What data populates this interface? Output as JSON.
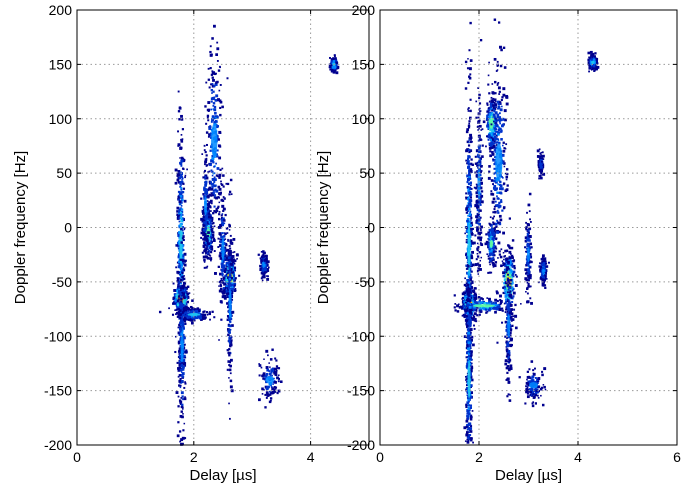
{
  "figure": {
    "panels": [
      "left",
      "right"
    ]
  },
  "colors": {
    "background": "#ffffff",
    "axes": "#000000",
    "grid": "#9a9a9a",
    "colormap": [
      "#00008f",
      "#0033cc",
      "#0088ff",
      "#22ccee",
      "#66ff99",
      "#ddff33",
      "#ffcc00",
      "#ff5500"
    ]
  },
  "chart_data": [
    {
      "type": "heatmap",
      "title": "",
      "xlabel": "Delay [µs]",
      "ylabel": "Doppler frequency [Hz]",
      "xlim": [
        0,
        5
      ],
      "ylim": [
        -200,
        200
      ],
      "xticks": [
        0,
        2,
        4
      ],
      "yticks": [
        -200,
        -150,
        -100,
        -50,
        0,
        50,
        100,
        150,
        200
      ],
      "grid": true,
      "blobs": [
        {
          "x": 1.78,
          "y": -65,
          "intensity": 1.0,
          "spread_x": 0.06,
          "spread_y": 6
        },
        {
          "x": 1.78,
          "y": -15,
          "intensity": 0.45,
          "spread_x": 0.03,
          "spread_y": 55
        },
        {
          "x": 1.8,
          "y": -110,
          "intensity": 0.35,
          "spread_x": 0.03,
          "spread_y": 40
        },
        {
          "x": 2.62,
          "y": -45,
          "intensity": 0.8,
          "spread_x": 0.05,
          "spread_y": 10
        },
        {
          "x": 2.62,
          "y": -70,
          "intensity": 0.3,
          "spread_x": 0.02,
          "spread_y": 40
        },
        {
          "x": 2.25,
          "y": -5,
          "intensity": 0.55,
          "spread_x": 0.04,
          "spread_y": 12
        },
        {
          "x": 2.2,
          "y": 20,
          "intensity": 0.3,
          "spread_x": 0.03,
          "spread_y": 25
        },
        {
          "x": 2.35,
          "y": 80,
          "intensity": 0.35,
          "spread_x": 0.06,
          "spread_y": 45
        },
        {
          "x": 2.5,
          "y": -20,
          "intensity": 0.3,
          "spread_x": 0.03,
          "spread_y": 30
        },
        {
          "x": 3.2,
          "y": -35,
          "intensity": 0.35,
          "spread_x": 0.03,
          "spread_y": 5
        },
        {
          "x": 3.3,
          "y": -140,
          "intensity": 0.3,
          "spread_x": 0.08,
          "spread_y": 10
        },
        {
          "x": 4.4,
          "y": 150,
          "intensity": 0.5,
          "spread_x": 0.03,
          "spread_y": 3
        },
        {
          "x": 2.0,
          "y": -80,
          "intensity": 0.4,
          "spread_x": 0.12,
          "spread_y": 3
        }
      ]
    },
    {
      "type": "heatmap",
      "title": "",
      "xlabel": "Delay [µs]",
      "ylabel": "Doppler frequency [Hz]",
      "xlim": [
        0,
        6
      ],
      "ylim": [
        -200,
        200
      ],
      "xticks": [
        0,
        2,
        4,
        6
      ],
      "yticks": [
        -200,
        -150,
        -100,
        -50,
        0,
        50,
        100,
        150,
        200
      ],
      "grid": true,
      "blobs": [
        {
          "x": 1.8,
          "y": -70,
          "intensity": 1.0,
          "spread_x": 0.06,
          "spread_y": 8
        },
        {
          "x": 1.8,
          "y": -20,
          "intensity": 0.45,
          "spread_x": 0.03,
          "spread_y": 70
        },
        {
          "x": 1.8,
          "y": -140,
          "intensity": 0.4,
          "spread_x": 0.03,
          "spread_y": 50
        },
        {
          "x": 2.1,
          "y": -72,
          "intensity": 0.55,
          "spread_x": 0.25,
          "spread_y": 3
        },
        {
          "x": 2.6,
          "y": -50,
          "intensity": 0.85,
          "spread_x": 0.06,
          "spread_y": 14
        },
        {
          "x": 2.6,
          "y": -90,
          "intensity": 0.3,
          "spread_x": 0.03,
          "spread_y": 30
        },
        {
          "x": 2.25,
          "y": 95,
          "intensity": 0.65,
          "spread_x": 0.05,
          "spread_y": 12
        },
        {
          "x": 2.4,
          "y": 60,
          "intensity": 0.35,
          "spread_x": 0.08,
          "spread_y": 50
        },
        {
          "x": 2.25,
          "y": -15,
          "intensity": 0.55,
          "spread_x": 0.04,
          "spread_y": 10
        },
        {
          "x": 2.0,
          "y": 40,
          "intensity": 0.3,
          "spread_x": 0.03,
          "spread_y": 40
        },
        {
          "x": 3.3,
          "y": -40,
          "intensity": 0.35,
          "spread_x": 0.03,
          "spread_y": 6
        },
        {
          "x": 3.0,
          "y": -25,
          "intensity": 0.3,
          "spread_x": 0.03,
          "spread_y": 20
        },
        {
          "x": 3.1,
          "y": -145,
          "intensity": 0.3,
          "spread_x": 0.1,
          "spread_y": 8
        },
        {
          "x": 4.3,
          "y": 152,
          "intensity": 0.5,
          "spread_x": 0.04,
          "spread_y": 3
        },
        {
          "x": 3.25,
          "y": 58,
          "intensity": 0.25,
          "spread_x": 0.02,
          "spread_y": 5
        }
      ]
    }
  ]
}
